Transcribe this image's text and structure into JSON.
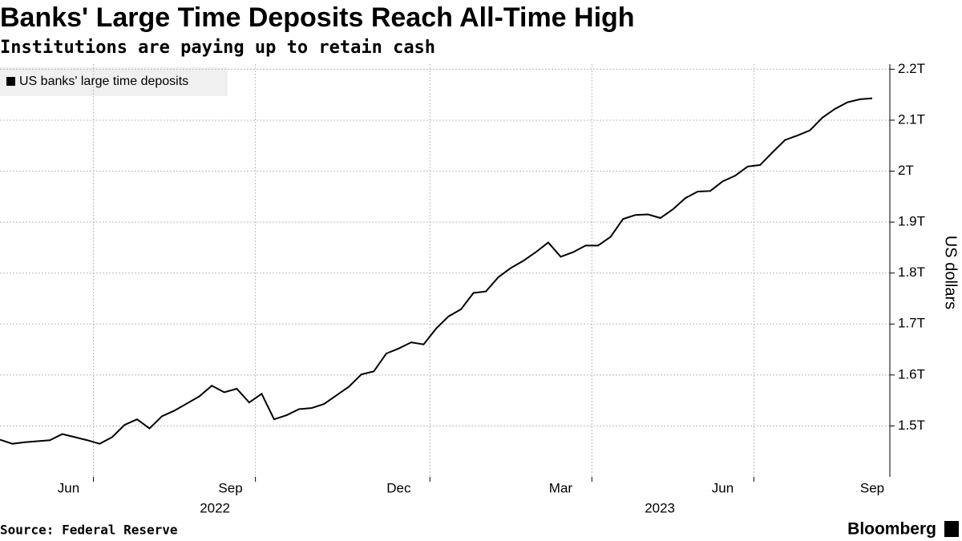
{
  "chart_data": {
    "type": "line",
    "title": "Banks' Large Time Deposits Reach All-Time High",
    "subtitle": "Institutions are paying up to retain cash",
    "source": "Source: Federal Reserve",
    "brand": "Bloomberg",
    "y_label": "US dollars",
    "grid": true,
    "legend": "top-left",
    "x": [
      "2022-05",
      "2022-05",
      "2022-05",
      "2022-05",
      "2022-06",
      "2022-06",
      "2022-06",
      "2022-06",
      "2022-07",
      "2022-07",
      "2022-07",
      "2022-07",
      "2022-08",
      "2022-08",
      "2022-08",
      "2022-08",
      "2022-08",
      "2022-09",
      "2022-09",
      "2022-09",
      "2022-09",
      "2022-10",
      "2022-10",
      "2022-10",
      "2022-10",
      "2022-10",
      "2022-11",
      "2022-11",
      "2022-11",
      "2022-11",
      "2022-12",
      "2022-12",
      "2022-12",
      "2022-12",
      "2022-12",
      "2023-01",
      "2023-01",
      "2023-01",
      "2023-01",
      "2023-02",
      "2023-02",
      "2023-02",
      "2023-02",
      "2023-03",
      "2023-03",
      "2023-03",
      "2023-03",
      "2023-03",
      "2023-04",
      "2023-04",
      "2023-04",
      "2023-04",
      "2023-05",
      "2023-05",
      "2023-05",
      "2023-05",
      "2023-06",
      "2023-06",
      "2023-06",
      "2023-06",
      "2023-06",
      "2023-07",
      "2023-07",
      "2023-07",
      "2023-07",
      "2023-08",
      "2023-08",
      "2023-08",
      "2023-08",
      "2023-08",
      "2023-09"
    ],
    "series": [
      {
        "name": "US banks' large time deposits",
        "color": "#000000",
        "values": [
          1.473,
          1.465,
          1.468,
          1.47,
          1.472,
          1.484,
          1.478,
          1.472,
          1.465,
          1.478,
          1.502,
          1.513,
          1.495,
          1.519,
          1.53,
          1.544,
          1.558,
          1.579,
          1.566,
          1.573,
          1.546,
          1.563,
          1.513,
          1.521,
          1.533,
          1.535,
          1.543,
          1.56,
          1.577,
          1.601,
          1.607,
          1.642,
          1.652,
          1.664,
          1.66,
          1.691,
          1.715,
          1.729,
          1.761,
          1.764,
          1.792,
          1.81,
          1.824,
          1.841,
          1.86,
          1.832,
          1.841,
          1.854,
          1.854,
          1.871,
          1.906,
          1.914,
          1.915,
          1.908,
          1.925,
          1.947,
          1.96,
          1.961,
          1.98,
          1.991,
          2.009,
          2.012,
          2.037,
          2.061,
          2.07,
          2.08,
          2.105,
          2.122,
          2.135,
          2.141,
          2.143
        ]
      }
    ],
    "ylim": [
      1.4,
      2.21
    ],
    "yticks": [
      {
        "value": 1.5,
        "label": "1.5T"
      },
      {
        "value": 1.6,
        "label": "1.6T"
      },
      {
        "value": 1.7,
        "label": "1.7T"
      },
      {
        "value": 1.8,
        "label": "1.8T"
      },
      {
        "value": 1.9,
        "label": "1.9T"
      },
      {
        "value": 2,
        "label": "2T"
      },
      {
        "value": 2.1,
        "label": "2.1T"
      },
      {
        "value": 2.2,
        "label": "2.2T"
      }
    ],
    "xticks": [
      {
        "value": "2022-06",
        "label": "Jun"
      },
      {
        "value": "2022-09",
        "label": "Sep"
      },
      {
        "value": "2022-12",
        "label": "Dec"
      },
      {
        "value": "2023-03",
        "label": "Mar"
      },
      {
        "value": "2023-06",
        "label": "Jun"
      },
      {
        "value": "2023-09",
        "label": "Sep"
      }
    ],
    "xgroups": [
      "2022",
      "2023"
    ]
  }
}
